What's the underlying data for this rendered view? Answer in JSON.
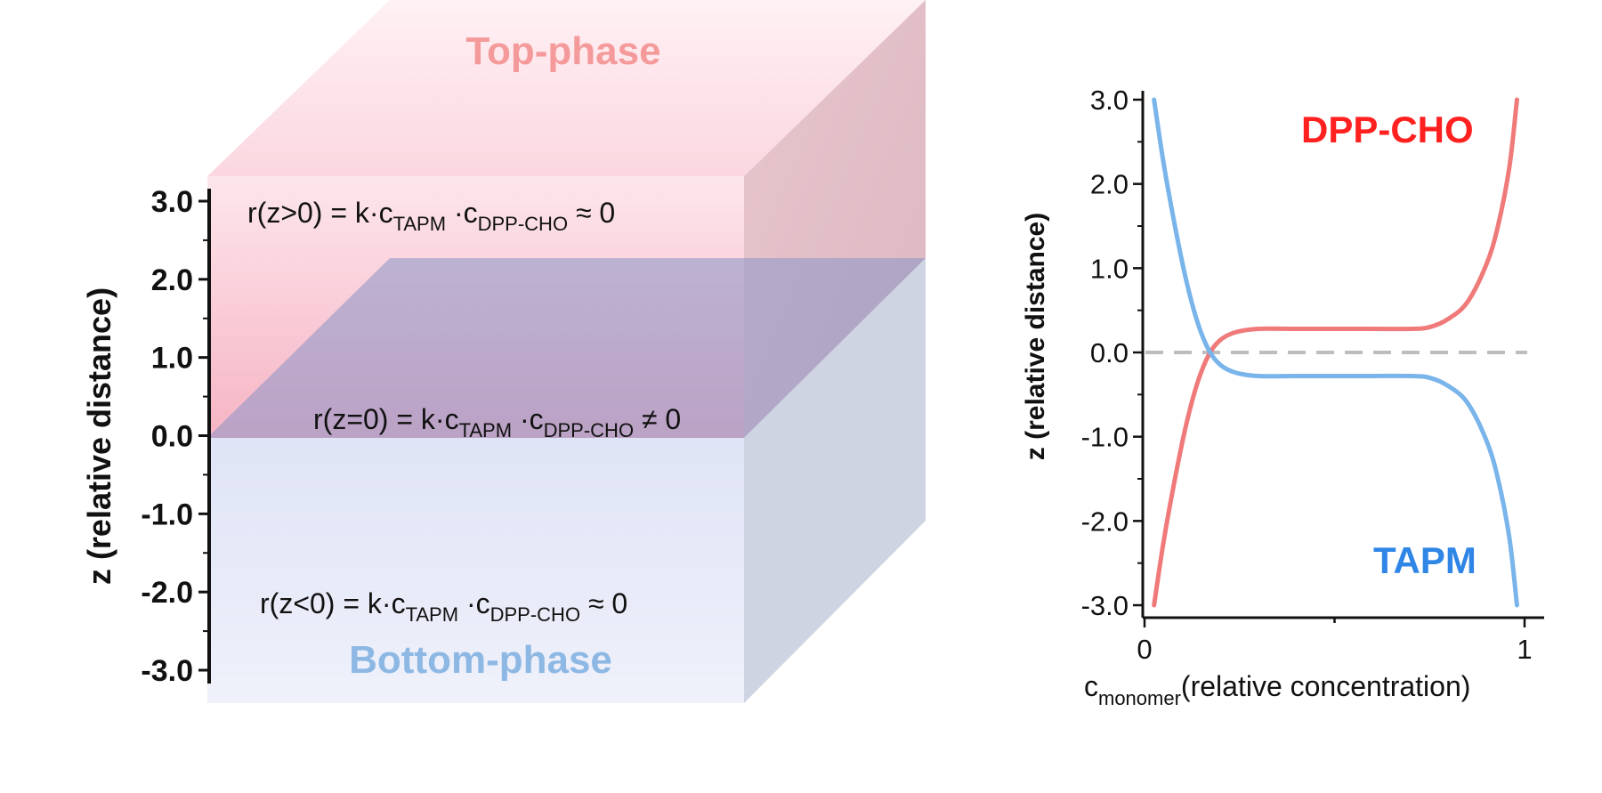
{
  "cube": {
    "top_label": "Top-phase",
    "bottom_label": "Bottom-phase",
    "axis_title": "z (relative distance)",
    "axis_ticks": [
      "3.0",
      "2.0",
      "1.0",
      "0.0",
      "-1.0",
      "-2.0",
      "-3.0"
    ],
    "eq_top": {
      "lhs": "r(z>0) = k·c",
      "sub1": "TAPM",
      "mid": " ·c",
      "sub2": "DPP-CHO",
      "rhs": " ≈ 0"
    },
    "eq_mid": {
      "lhs": "r(z=0) = k·c",
      "sub1": "TAPM",
      "mid": " ·c",
      "sub2": "DPP-CHO",
      "rhs": " ≠ 0"
    },
    "eq_bottom": {
      "lhs": "r(z<0) = k·c",
      "sub1": "TAPM",
      "mid": " ·c",
      "sub2": "DPP-CHO",
      "rhs": " ≈ 0"
    },
    "colors": {
      "top_phase": "#f2a0b3",
      "bottom_phase": "#b4c2ea",
      "interface": "#8b93c6",
      "top_label": "#f59a9a",
      "bottom_label": "#8db8e4"
    }
  },
  "chart_data": {
    "type": "line",
    "ylabel": "z (relative distance)",
    "xlabel": "c",
    "xlabel_sub": "monomer",
    "xlabel_tail": "(relative concentration)",
    "xlim": [
      0,
      1
    ],
    "ylim": [
      -3,
      3
    ],
    "xticks": [
      "0",
      "1"
    ],
    "yticks": [
      "3.0",
      "2.0",
      "1.0",
      "0.0",
      "-1.0",
      "-2.0",
      "-3.0"
    ],
    "reference_line": {
      "y": 0,
      "style": "dashed",
      "color": "#bdbdbd"
    },
    "series": [
      {
        "name": "DPP-CHO",
        "color": "#f07a7a",
        "label_color": "#ff2020",
        "x": [
          0.025,
          0.05,
          0.08,
          0.11,
          0.14,
          0.17,
          0.2,
          0.24,
          0.3,
          0.4,
          0.5,
          0.6,
          0.7,
          0.75,
          0.8,
          0.85,
          0.9,
          0.93,
          0.96,
          0.98
        ],
        "y": [
          -3.0,
          -2.25,
          -1.5,
          -0.85,
          -0.35,
          -0.02,
          0.15,
          0.24,
          0.28,
          0.28,
          0.28,
          0.28,
          0.28,
          0.3,
          0.4,
          0.6,
          1.05,
          1.5,
          2.2,
          3.0
        ]
      },
      {
        "name": "TAPM",
        "color": "#79b4ea",
        "label_color": "#2f86e6",
        "x": [
          0.025,
          0.05,
          0.08,
          0.11,
          0.14,
          0.17,
          0.2,
          0.24,
          0.3,
          0.4,
          0.5,
          0.6,
          0.7,
          0.75,
          0.8,
          0.85,
          0.9,
          0.93,
          0.96,
          0.98
        ],
        "y": [
          3.0,
          2.25,
          1.5,
          0.85,
          0.35,
          0.02,
          -0.15,
          -0.24,
          -0.28,
          -0.28,
          -0.28,
          -0.28,
          -0.28,
          -0.3,
          -0.4,
          -0.6,
          -1.05,
          -1.5,
          -2.2,
          -3.0
        ]
      }
    ]
  }
}
